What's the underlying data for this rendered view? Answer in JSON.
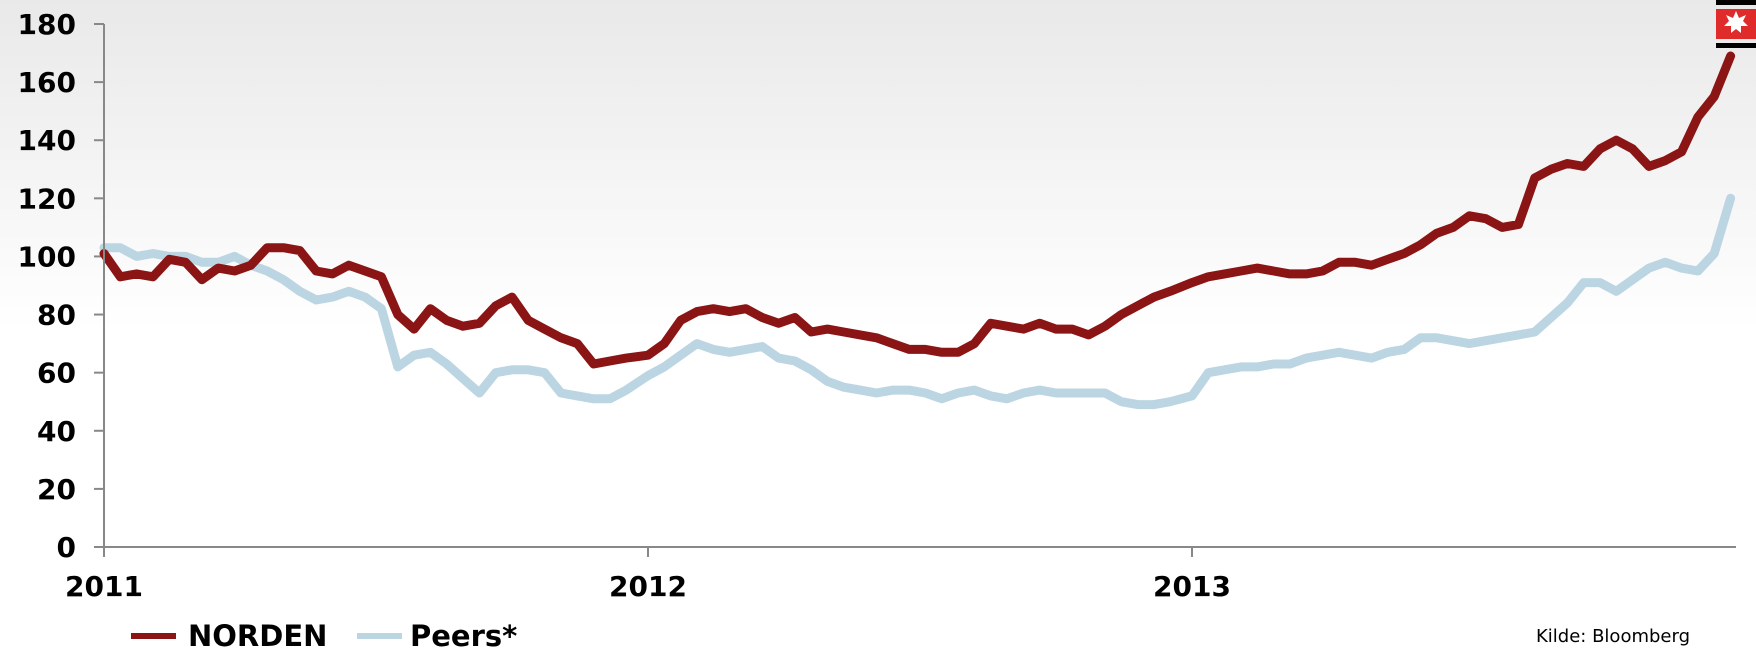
{
  "chart_data": {
    "type": "line",
    "ylim": [
      0,
      180
    ],
    "yticks": [
      "0",
      "20",
      "40",
      "60",
      "80",
      "100",
      "120",
      "140",
      "160",
      "180"
    ],
    "xlim": [
      2011,
      2014
    ],
    "xticks": [
      {
        "label": "2011",
        "value": 2011
      },
      {
        "label": "2012",
        "value": 2012
      },
      {
        "label": "2013",
        "value": 2013
      }
    ],
    "grid": false,
    "legend_position": "bottom-left",
    "series": [
      {
        "name": "NORDEN",
        "color": "#8b1414",
        "x": [
          2011.0,
          2011.03,
          2011.06,
          2011.09,
          2011.12,
          2011.15,
          2011.18,
          2011.21,
          2011.24,
          2011.27,
          2011.3,
          2011.33,
          2011.36,
          2011.39,
          2011.42,
          2011.45,
          2011.48,
          2011.51,
          2011.54,
          2011.57,
          2011.6,
          2011.63,
          2011.66,
          2011.69,
          2011.72,
          2011.75,
          2011.78,
          2011.81,
          2011.84,
          2011.87,
          2011.9,
          2011.93,
          2011.96,
          2012.0,
          2012.03,
          2012.06,
          2012.09,
          2012.12,
          2012.15,
          2012.18,
          2012.21,
          2012.24,
          2012.27,
          2012.3,
          2012.33,
          2012.36,
          2012.39,
          2012.42,
          2012.45,
          2012.48,
          2012.51,
          2012.54,
          2012.57,
          2012.6,
          2012.63,
          2012.66,
          2012.69,
          2012.72,
          2012.75,
          2012.78,
          2012.81,
          2012.84,
          2012.87,
          2012.9,
          2012.93,
          2012.96,
          2013.0,
          2013.03,
          2013.06,
          2013.09,
          2013.12,
          2013.15,
          2013.18,
          2013.21,
          2013.24,
          2013.27,
          2013.3,
          2013.33,
          2013.36,
          2013.39,
          2013.42,
          2013.45,
          2013.48,
          2013.51,
          2013.54,
          2013.57,
          2013.6,
          2013.63,
          2013.66,
          2013.69,
          2013.72,
          2013.75,
          2013.78,
          2013.81,
          2013.84,
          2013.87,
          2013.9,
          2013.93,
          2013.96,
          2013.99
        ],
        "values": [
          101,
          93,
          94,
          93,
          99,
          98,
          92,
          96,
          95,
          97,
          103,
          103,
          102,
          95,
          94,
          97,
          95,
          93,
          80,
          75,
          82,
          78,
          76,
          77,
          83,
          86,
          78,
          75,
          72,
          70,
          63,
          64,
          65,
          66,
          70,
          78,
          81,
          82,
          81,
          82,
          79,
          77,
          79,
          74,
          75,
          74,
          73,
          72,
          70,
          68,
          68,
          67,
          67,
          70,
          77,
          76,
          75,
          77,
          75,
          75,
          73,
          76,
          80,
          83,
          86,
          88,
          91,
          93,
          94,
          95,
          96,
          95,
          94,
          94,
          95,
          98,
          98,
          97,
          99,
          101,
          104,
          108,
          110,
          114,
          113,
          110,
          111,
          127,
          130,
          132,
          131,
          137,
          140,
          137,
          131,
          133,
          136,
          148,
          155,
          169
        ]
      },
      {
        "name": "Peers*",
        "color": "#bcd5e2",
        "x": [
          2011.0,
          2011.03,
          2011.06,
          2011.09,
          2011.12,
          2011.15,
          2011.18,
          2011.21,
          2011.24,
          2011.27,
          2011.3,
          2011.33,
          2011.36,
          2011.39,
          2011.42,
          2011.45,
          2011.48,
          2011.51,
          2011.54,
          2011.57,
          2011.6,
          2011.63,
          2011.66,
          2011.69,
          2011.72,
          2011.75,
          2011.78,
          2011.81,
          2011.84,
          2011.87,
          2011.9,
          2011.93,
          2011.96,
          2012.0,
          2012.03,
          2012.06,
          2012.09,
          2012.12,
          2012.15,
          2012.18,
          2012.21,
          2012.24,
          2012.27,
          2012.3,
          2012.33,
          2012.36,
          2012.39,
          2012.42,
          2012.45,
          2012.48,
          2012.51,
          2012.54,
          2012.57,
          2012.6,
          2012.63,
          2012.66,
          2012.69,
          2012.72,
          2012.75,
          2012.78,
          2012.81,
          2012.84,
          2012.87,
          2012.9,
          2012.93,
          2012.96,
          2013.0,
          2013.03,
          2013.06,
          2013.09,
          2013.12,
          2013.15,
          2013.18,
          2013.21,
          2013.24,
          2013.27,
          2013.3,
          2013.33,
          2013.36,
          2013.39,
          2013.42,
          2013.45,
          2013.48,
          2013.51,
          2013.54,
          2013.57,
          2013.6,
          2013.63,
          2013.66,
          2013.69,
          2013.72,
          2013.75,
          2013.78,
          2013.81,
          2013.84,
          2013.87,
          2013.9,
          2013.93,
          2013.96,
          2013.99
        ],
        "values": [
          103,
          103,
          100,
          101,
          100,
          100,
          98,
          98,
          100,
          97,
          95,
          92,
          88,
          85,
          86,
          88,
          86,
          82,
          62,
          66,
          67,
          63,
          58,
          53,
          60,
          61,
          61,
          60,
          53,
          52,
          51,
          51,
          54,
          59,
          62,
          66,
          70,
          68,
          67,
          68,
          69,
          65,
          64,
          61,
          57,
          55,
          54,
          53,
          54,
          54,
          53,
          51,
          53,
          54,
          52,
          51,
          53,
          54,
          53,
          53,
          53,
          53,
          50,
          49,
          49,
          50,
          52,
          60,
          61,
          62,
          62,
          63,
          63,
          65,
          66,
          67,
          66,
          65,
          67,
          68,
          72,
          72,
          71,
          70,
          71,
          72,
          73,
          74,
          79,
          84,
          91,
          91,
          88,
          92,
          96,
          98,
          96,
          95,
          101,
          120
        ]
      }
    ],
    "source": "Kilde: Bloomberg"
  }
}
